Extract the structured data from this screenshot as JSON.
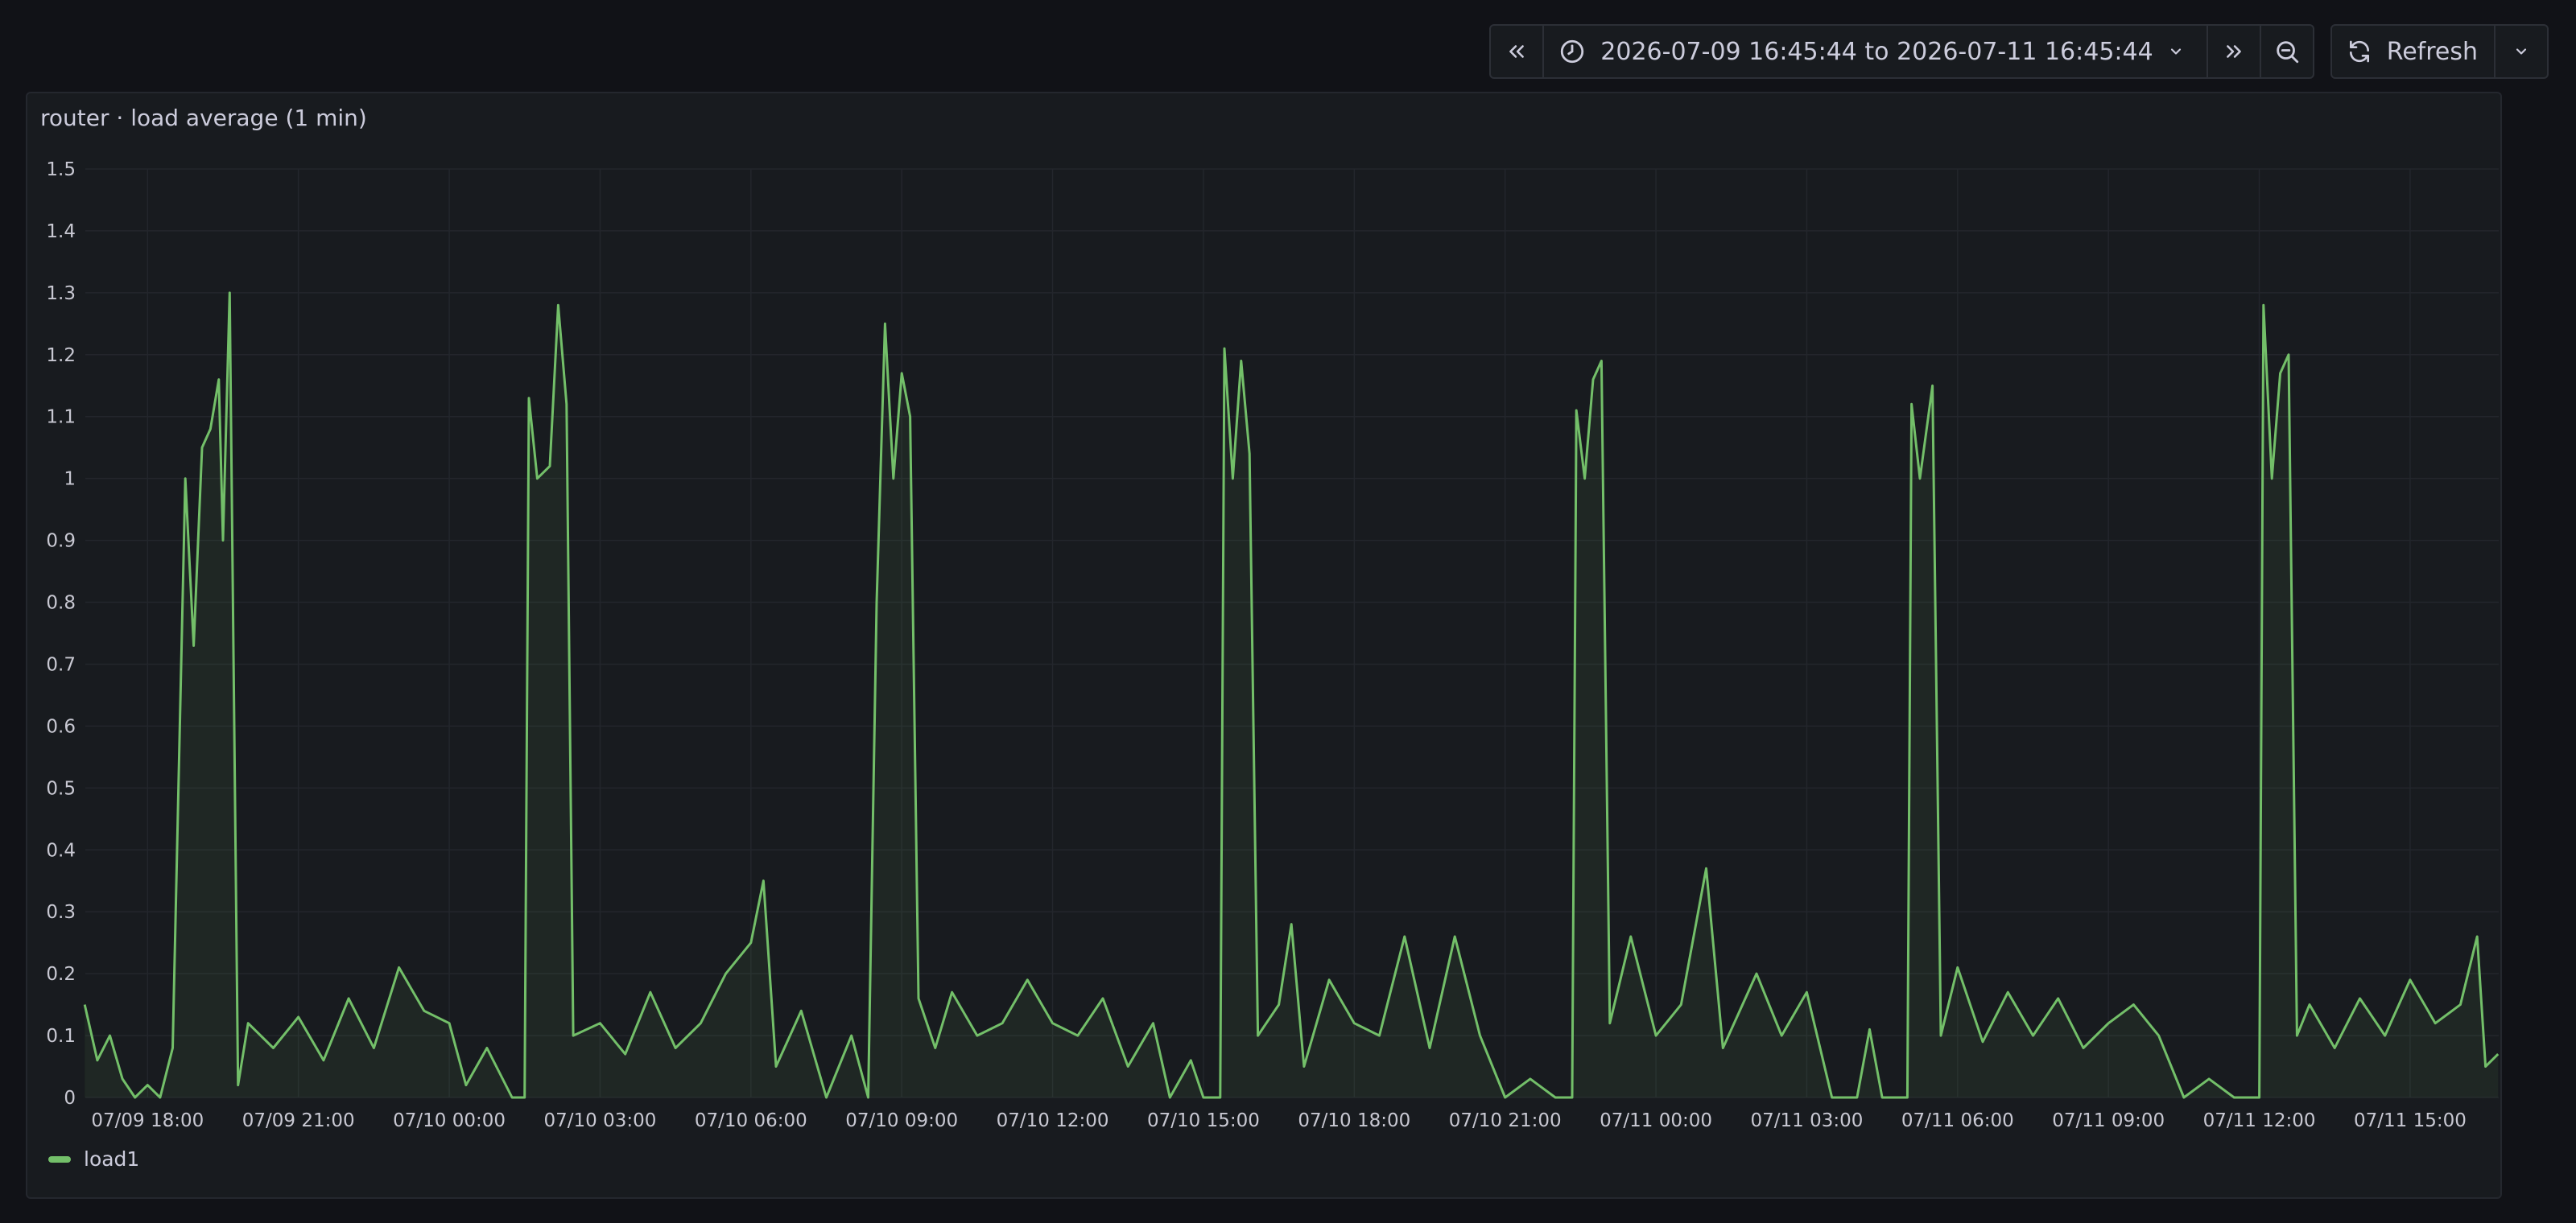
{
  "toolbar": {
    "time_range": "2026-07-09 16:45:44 to 2026-07-11 16:45:44",
    "refresh_label": "Refresh"
  },
  "panel": {
    "title": "router · load average (1 min)"
  },
  "colors": {
    "series": "#73bf69",
    "grid": "#23262c",
    "axis_text": "#c8c8d2"
  },
  "chart_data": {
    "type": "line",
    "title": "router · load average (1 min)",
    "xlabel": "",
    "ylabel": "",
    "x_range": [
      "2026-07-09 16:45:44",
      "2026-07-11 16:45:44"
    ],
    "ylim": [
      0,
      1.5
    ],
    "y_ticks": [
      0,
      0.1,
      0.2,
      0.3,
      0.4,
      0.5,
      0.6,
      0.7,
      0.8,
      0.9,
      1,
      1.1,
      1.2,
      1.3,
      1.4,
      1.5
    ],
    "x_ticks": [
      "07/09 18:00",
      "07/09 21:00",
      "07/10 00:00",
      "07/10 03:00",
      "07/10 06:00",
      "07/10 09:00",
      "07/10 12:00",
      "07/10 15:00",
      "07/10 18:00",
      "07/10 21:00",
      "07/11 00:00",
      "07/11 03:00",
      "07/11 06:00",
      "07/11 09:00",
      "07/11 12:00",
      "07/11 15:00"
    ],
    "grid": true,
    "legend_position": "bottom-left",
    "series": [
      {
        "name": "load1",
        "points": [
          [
            "07/09 16:45",
            0.15
          ],
          [
            "07/09 17:00",
            0.06
          ],
          [
            "07/09 17:15",
            0.1
          ],
          [
            "07/09 17:30",
            0.03
          ],
          [
            "07/09 17:45",
            0.0
          ],
          [
            "07/09 18:00",
            0.02
          ],
          [
            "07/09 18:15",
            0.0
          ],
          [
            "07/09 18:30",
            0.08
          ],
          [
            "07/09 18:45",
            1.0
          ],
          [
            "07/09 18:55",
            0.73
          ],
          [
            "07/09 19:05",
            1.05
          ],
          [
            "07/09 19:15",
            1.08
          ],
          [
            "07/09 19:25",
            1.16
          ],
          [
            "07/09 19:30",
            0.9
          ],
          [
            "07/09 19:38",
            1.3
          ],
          [
            "07/09 19:48",
            0.02
          ],
          [
            "07/09 20:00",
            0.12
          ],
          [
            "07/09 20:30",
            0.08
          ],
          [
            "07/09 21:00",
            0.13
          ],
          [
            "07/09 21:30",
            0.06
          ],
          [
            "07/09 22:00",
            0.16
          ],
          [
            "07/09 22:30",
            0.08
          ],
          [
            "07/09 23:00",
            0.21
          ],
          [
            "07/09 23:30",
            0.14
          ],
          [
            "07/10 00:00",
            0.12
          ],
          [
            "07/10 00:20",
            0.02
          ],
          [
            "07/10 00:45",
            0.08
          ],
          [
            "07/10 01:15",
            0.0
          ],
          [
            "07/10 01:30",
            0.0
          ],
          [
            "07/10 01:35",
            1.13
          ],
          [
            "07/10 01:45",
            1.0
          ],
          [
            "07/10 02:00",
            1.02
          ],
          [
            "07/10 02:10",
            1.28
          ],
          [
            "07/10 02:20",
            1.12
          ],
          [
            "07/10 02:28",
            0.1
          ],
          [
            "07/10 03:00",
            0.12
          ],
          [
            "07/10 03:30",
            0.07
          ],
          [
            "07/10 04:00",
            0.17
          ],
          [
            "07/10 04:30",
            0.08
          ],
          [
            "07/10 05:00",
            0.12
          ],
          [
            "07/10 05:30",
            0.2
          ],
          [
            "07/10 06:00",
            0.25
          ],
          [
            "07/10 06:15",
            0.35
          ],
          [
            "07/10 06:30",
            0.05
          ],
          [
            "07/10 07:00",
            0.14
          ],
          [
            "07/10 07:30",
            0.0
          ],
          [
            "07/10 08:00",
            0.1
          ],
          [
            "07/10 08:20",
            0.0
          ],
          [
            "07/10 08:30",
            0.8
          ],
          [
            "07/10 08:40",
            1.25
          ],
          [
            "07/10 08:50",
            1.0
          ],
          [
            "07/10 09:00",
            1.17
          ],
          [
            "07/10 09:10",
            1.1
          ],
          [
            "07/10 09:20",
            0.16
          ],
          [
            "07/10 09:40",
            0.08
          ],
          [
            "07/10 10:00",
            0.17
          ],
          [
            "07/10 10:30",
            0.1
          ],
          [
            "07/10 11:00",
            0.12
          ],
          [
            "07/10 11:30",
            0.19
          ],
          [
            "07/10 12:00",
            0.12
          ],
          [
            "07/10 12:30",
            0.1
          ],
          [
            "07/10 13:00",
            0.16
          ],
          [
            "07/10 13:30",
            0.05
          ],
          [
            "07/10 14:00",
            0.12
          ],
          [
            "07/10 14:20",
            0.0
          ],
          [
            "07/10 14:45",
            0.06
          ],
          [
            "07/10 15:00",
            0.0
          ],
          [
            "07/10 15:20",
            0.0
          ],
          [
            "07/10 15:25",
            1.21
          ],
          [
            "07/10 15:35",
            1.0
          ],
          [
            "07/10 15:45",
            1.19
          ],
          [
            "07/10 15:55",
            1.04
          ],
          [
            "07/10 16:05",
            0.1
          ],
          [
            "07/10 16:30",
            0.15
          ],
          [
            "07/10 16:45",
            0.28
          ],
          [
            "07/10 17:00",
            0.05
          ],
          [
            "07/10 17:30",
            0.19
          ],
          [
            "07/10 18:00",
            0.12
          ],
          [
            "07/10 18:30",
            0.1
          ],
          [
            "07/10 19:00",
            0.26
          ],
          [
            "07/10 19:30",
            0.08
          ],
          [
            "07/10 20:00",
            0.26
          ],
          [
            "07/10 20:30",
            0.1
          ],
          [
            "07/10 21:00",
            0.0
          ],
          [
            "07/10 21:30",
            0.03
          ],
          [
            "07/10 22:00",
            0.0
          ],
          [
            "07/10 22:20",
            0.0
          ],
          [
            "07/10 22:25",
            1.11
          ],
          [
            "07/10 22:35",
            1.0
          ],
          [
            "07/10 22:45",
            1.16
          ],
          [
            "07/10 22:55",
            1.19
          ],
          [
            "07/10 23:05",
            0.12
          ],
          [
            "07/10 23:30",
            0.26
          ],
          [
            "07/11 00:00",
            0.1
          ],
          [
            "07/11 00:30",
            0.15
          ],
          [
            "07/11 01:00",
            0.37
          ],
          [
            "07/11 01:20",
            0.08
          ],
          [
            "07/11 02:00",
            0.2
          ],
          [
            "07/11 02:30",
            0.1
          ],
          [
            "07/11 03:00",
            0.17
          ],
          [
            "07/11 03:30",
            0.0
          ],
          [
            "07/11 04:00",
            0.0
          ],
          [
            "07/11 04:15",
            0.11
          ],
          [
            "07/11 04:30",
            0.0
          ],
          [
            "07/11 05:00",
            0.0
          ],
          [
            "07/11 05:05",
            1.12
          ],
          [
            "07/11 05:15",
            1.0
          ],
          [
            "07/11 05:30",
            1.15
          ],
          [
            "07/11 05:40",
            0.1
          ],
          [
            "07/11 06:00",
            0.21
          ],
          [
            "07/11 06:30",
            0.09
          ],
          [
            "07/11 07:00",
            0.17
          ],
          [
            "07/11 07:30",
            0.1
          ],
          [
            "07/11 08:00",
            0.16
          ],
          [
            "07/11 08:30",
            0.08
          ],
          [
            "07/11 09:00",
            0.12
          ],
          [
            "07/11 09:30",
            0.15
          ],
          [
            "07/11 10:00",
            0.1
          ],
          [
            "07/11 10:30",
            0.0
          ],
          [
            "07/11 11:00",
            0.03
          ],
          [
            "07/11 11:30",
            0.0
          ],
          [
            "07/11 12:00",
            0.0
          ],
          [
            "07/11 12:05",
            1.28
          ],
          [
            "07/11 12:15",
            1.0
          ],
          [
            "07/11 12:25",
            1.17
          ],
          [
            "07/11 12:35",
            1.2
          ],
          [
            "07/11 12:45",
            0.1
          ],
          [
            "07/11 13:00",
            0.15
          ],
          [
            "07/11 13:30",
            0.08
          ],
          [
            "07/11 14:00",
            0.16
          ],
          [
            "07/11 14:30",
            0.1
          ],
          [
            "07/11 15:00",
            0.19
          ],
          [
            "07/11 15:30",
            0.12
          ],
          [
            "07/11 16:00",
            0.15
          ],
          [
            "07/11 16:20",
            0.26
          ],
          [
            "07/11 16:30",
            0.05
          ],
          [
            "07/11 16:45",
            0.07
          ]
        ]
      }
    ]
  }
}
